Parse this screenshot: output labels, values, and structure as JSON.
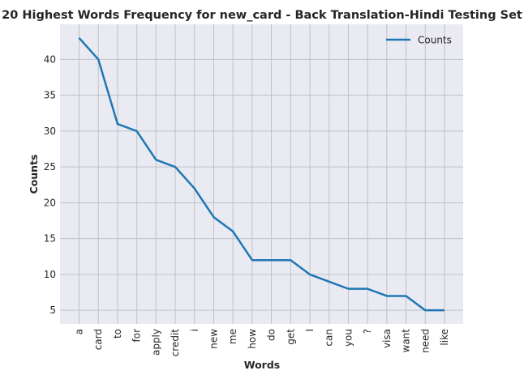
{
  "chart_data": {
    "type": "line",
    "title": "20 Highest Words Frequency for new_card - Back Translation-Hindi Testing Set",
    "xlabel": "Words",
    "ylabel": "Counts",
    "categories": [
      "a",
      "card",
      "to",
      "for",
      "apply",
      "credit",
      "i",
      "new",
      "me",
      "how",
      "do",
      "get",
      "I",
      "can",
      "you",
      "?",
      "visa",
      "want",
      "need",
      "like"
    ],
    "series": [
      {
        "name": "Counts",
        "color": "#1f77b4",
        "values": [
          43,
          40,
          31,
          30,
          26,
          25,
          22,
          18,
          16,
          12,
          12,
          12,
          10,
          9,
          8,
          8,
          7,
          7,
          5,
          5
        ]
      }
    ],
    "ylim": [
      3.1,
      44.9
    ],
    "yticks": [
      5,
      10,
      15,
      20,
      25,
      30,
      35,
      40
    ],
    "grid": true,
    "legend_position": "top-right",
    "colors": {
      "plot_background": "#eaeaf2",
      "grid": "#c0c0c8",
      "line": "#1f77b4"
    }
  }
}
